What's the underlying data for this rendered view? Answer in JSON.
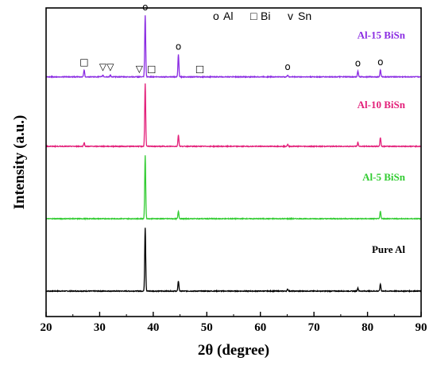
{
  "chart_data": {
    "type": "line",
    "title": "",
    "xlabel": "2θ (degree)",
    "ylabel": "Intensity (a.u.)",
    "xlim": [
      20,
      90
    ],
    "xticks": [
      20,
      30,
      40,
      50,
      60,
      70,
      80,
      90
    ],
    "yticks": "none",
    "grid": false,
    "legend": {
      "placement": "top",
      "entries": [
        {
          "symbol": "o",
          "label": "Al"
        },
        {
          "symbol": "□",
          "label": "Bi"
        },
        {
          "symbol": "v",
          "label": "Sn"
        }
      ]
    },
    "series": [
      {
        "name": "Pure Al",
        "color": "#000000",
        "baseline": 0.0,
        "peaks": [
          {
            "x": 38.5,
            "h": 1.0
          },
          {
            "x": 44.7,
            "h": 0.16
          },
          {
            "x": 65.1,
            "h": 0.03
          },
          {
            "x": 78.2,
            "h": 0.05
          },
          {
            "x": 82.4,
            "h": 0.11
          }
        ]
      },
      {
        "name": "Al-5 BiSn",
        "color": "#33cc33",
        "baseline": 1.0,
        "peaks": [
          {
            "x": 38.5,
            "h": 1.0
          },
          {
            "x": 44.7,
            "h": 0.12
          },
          {
            "x": 82.4,
            "h": 0.12
          }
        ]
      },
      {
        "name": "Al-10 BiSn",
        "color": "#e3207a",
        "baseline": 2.0,
        "peaks": [
          {
            "x": 27.1,
            "h": 0.06
          },
          {
            "x": 38.5,
            "h": 0.99
          },
          {
            "x": 44.7,
            "h": 0.18
          },
          {
            "x": 65.1,
            "h": 0.03
          },
          {
            "x": 78.2,
            "h": 0.06
          },
          {
            "x": 82.4,
            "h": 0.14
          }
        ]
      },
      {
        "name": "Al-15 BiSn",
        "color": "#8a2be2",
        "baseline": 2.96,
        "peaks": [
          {
            "x": 27.1,
            "h": 0.11
          },
          {
            "x": 30.6,
            "h": 0.03
          },
          {
            "x": 32.0,
            "h": 0.03
          },
          {
            "x": 38.5,
            "h": 0.97
          },
          {
            "x": 44.7,
            "h": 0.35
          },
          {
            "x": 65.1,
            "h": 0.03
          },
          {
            "x": 78.2,
            "h": 0.09
          },
          {
            "x": 82.4,
            "h": 0.11
          }
        ]
      }
    ],
    "peak_markers": [
      {
        "x": 27.1,
        "symbol": "□",
        "phase": "Bi"
      },
      {
        "x": 30.6,
        "symbol": "▽",
        "phase": "Sn"
      },
      {
        "x": 32.0,
        "symbol": "▽",
        "phase": "Sn"
      },
      {
        "x": 37.4,
        "symbol": "▽",
        "phase": "Sn"
      },
      {
        "x": 38.5,
        "symbol": "o",
        "phase": "Al"
      },
      {
        "x": 39.7,
        "symbol": "□",
        "phase": "Bi"
      },
      {
        "x": 44.7,
        "symbol": "o",
        "phase": "Al"
      },
      {
        "x": 48.7,
        "symbol": "□",
        "phase": "Bi"
      },
      {
        "x": 65.1,
        "symbol": "o",
        "phase": "Al"
      },
      {
        "x": 78.2,
        "symbol": "o",
        "phase": "Al"
      },
      {
        "x": 82.4,
        "symbol": "o",
        "phase": "Al"
      }
    ]
  }
}
